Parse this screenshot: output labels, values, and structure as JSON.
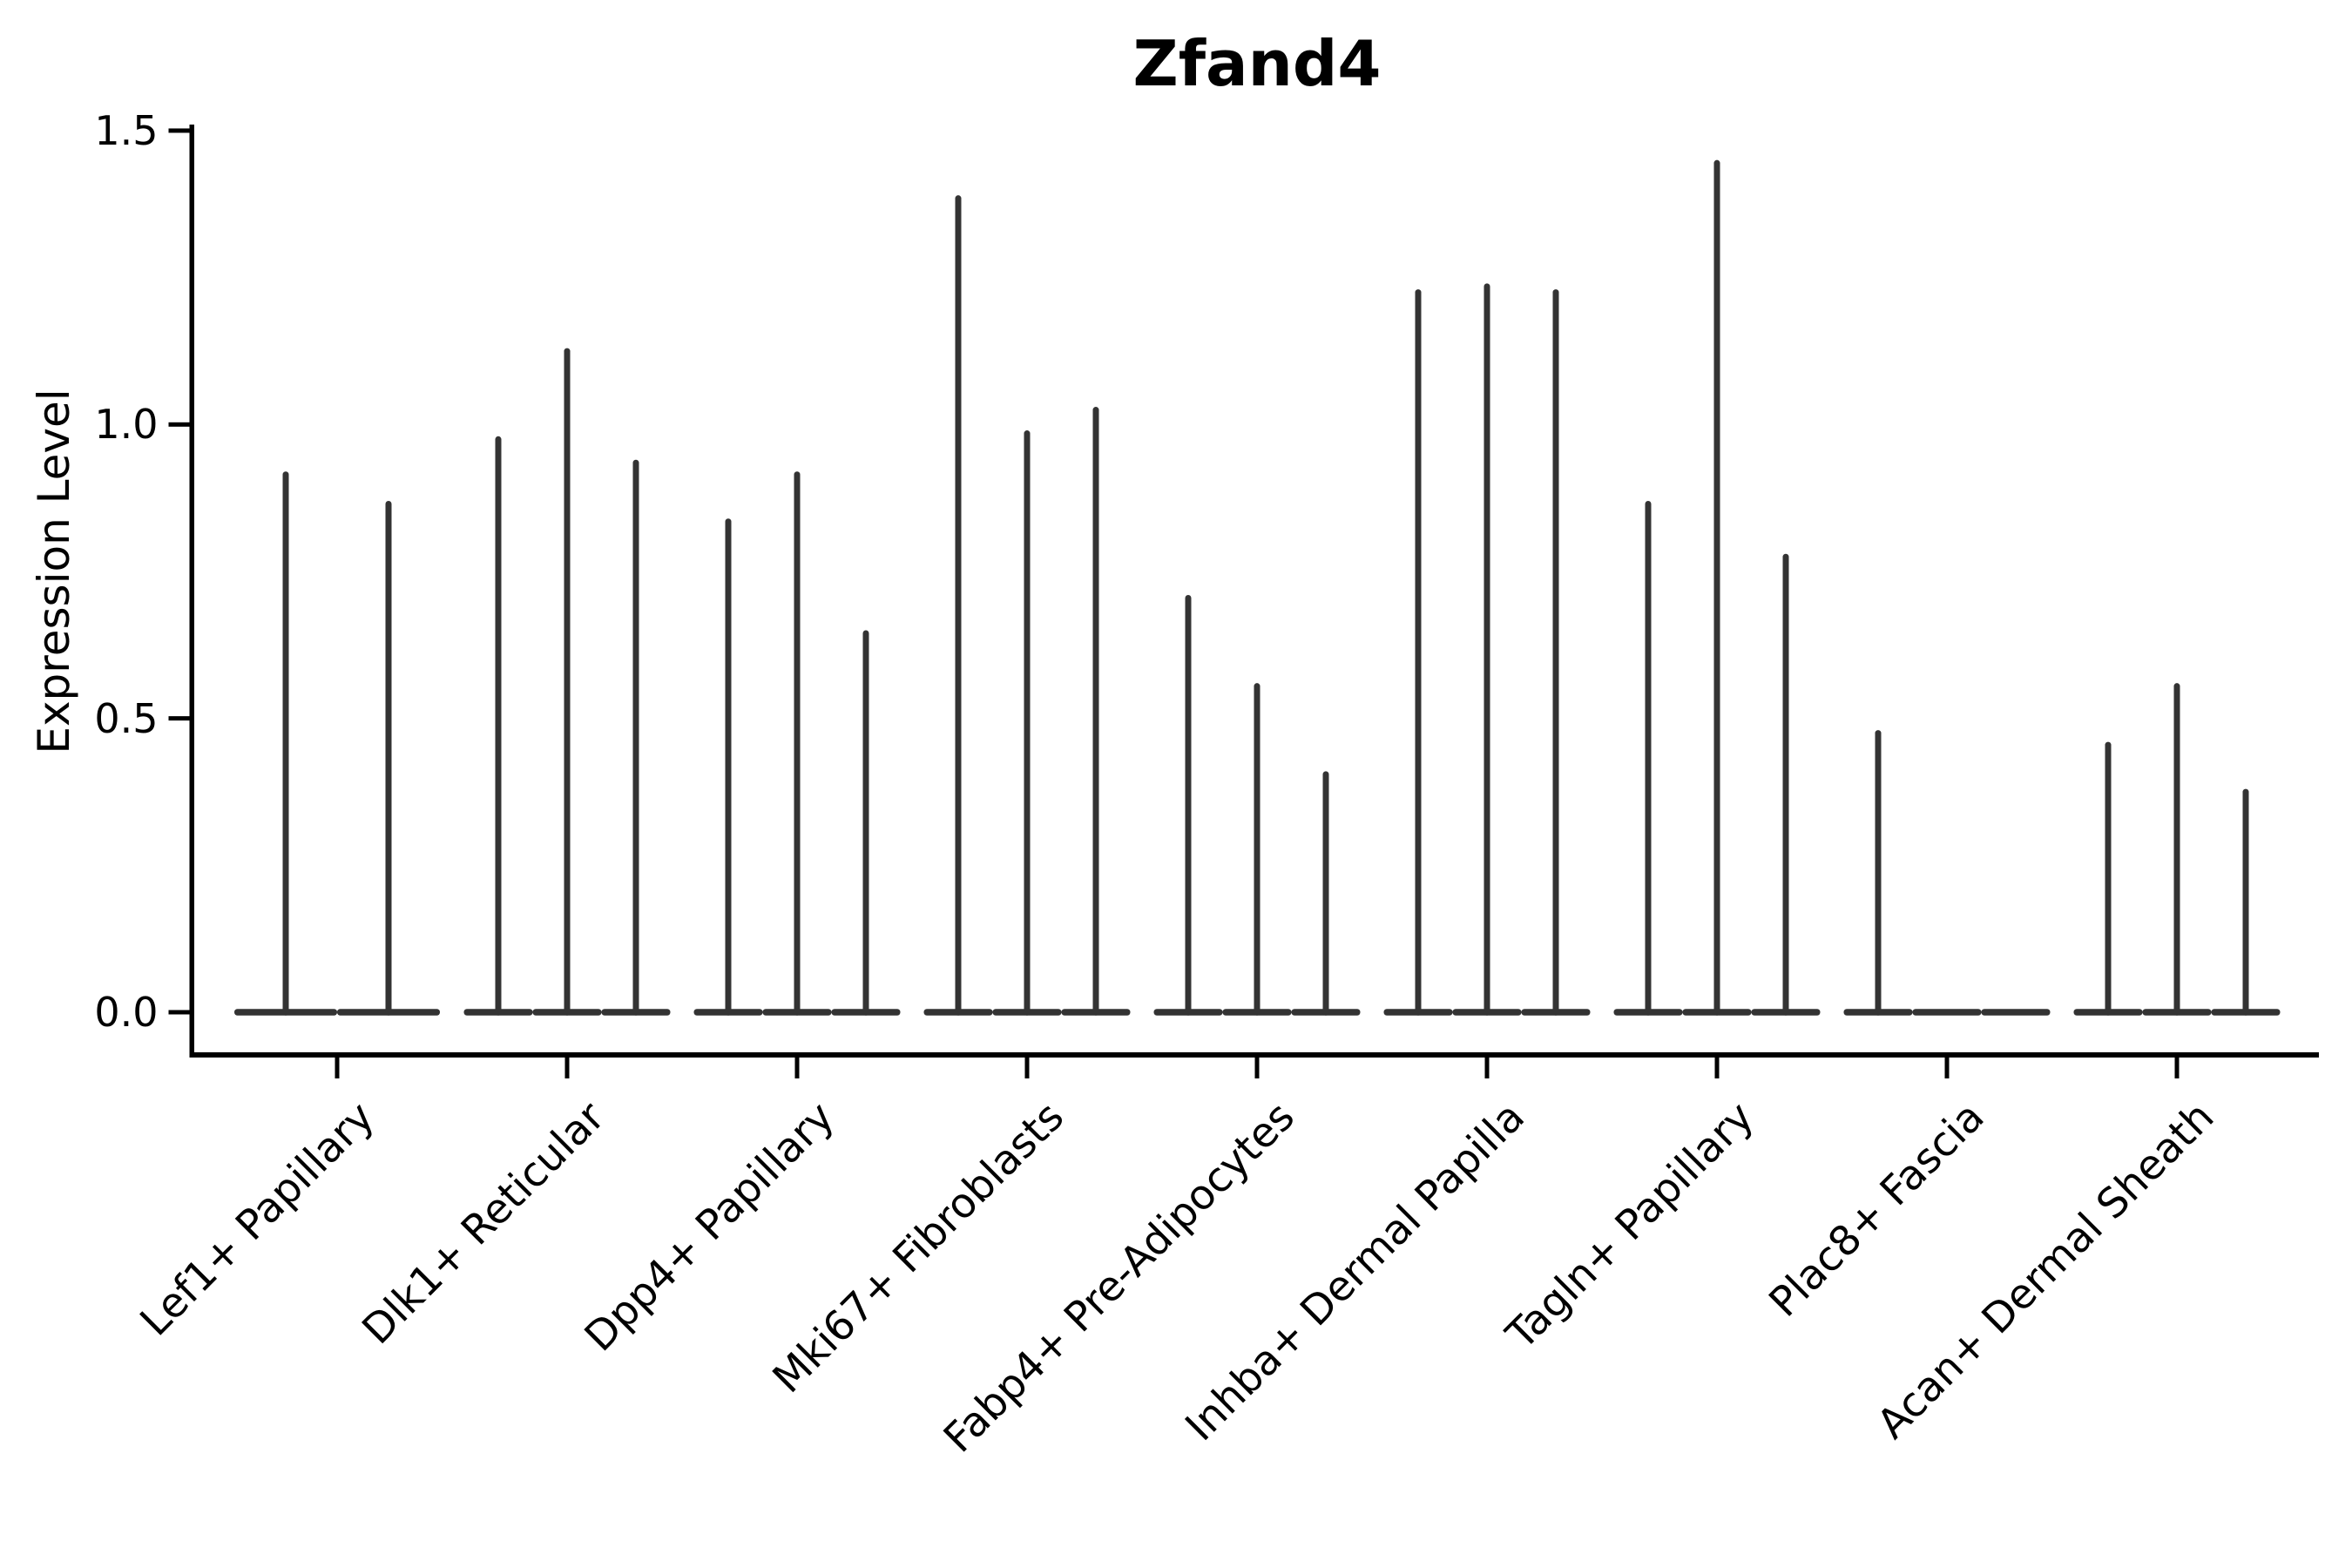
{
  "chart_data": {
    "type": "violin",
    "title": "Zfand4",
    "xlabel": "",
    "ylabel": "Expression Level",
    "yticks": [
      0.0,
      0.5,
      1.0,
      1.5
    ],
    "ylim": [
      0.0,
      1.5
    ],
    "grid": false,
    "legend": "none",
    "background": "#ffffff",
    "categories": [
      "Lef1+ Papillary",
      "Dlk1+ Reticular",
      "Dpp4+ Papillary",
      "Mki67+ Fibroblasts",
      "Fabp4+ Pre-Adipocytes",
      "Inhba+ Dermal Papilla",
      "Tagln+ Papillary",
      "Plac8+ Fascia",
      "Acan+ Dermal Sheath"
    ],
    "violins": [
      {
        "category": "Lef1+ Papillary",
        "maxima": [
          0.92,
          0.87
        ]
      },
      {
        "category": "Dlk1+ Reticular",
        "maxima": [
          0.98,
          1.13,
          0.94
        ]
      },
      {
        "category": "Dpp4+ Papillary",
        "maxima": [
          0.84,
          0.92,
          0.65
        ]
      },
      {
        "category": "Mki67+ Fibroblasts",
        "maxima": [
          1.39,
          0.99,
          1.03
        ]
      },
      {
        "category": "Fabp4+ Pre-Adipocytes",
        "maxima": [
          0.71,
          0.56,
          0.41
        ]
      },
      {
        "category": "Inhba+ Dermal Papilla",
        "maxima": [
          1.23,
          1.24,
          1.23
        ]
      },
      {
        "category": "Tagln+ Papillary",
        "maxima": [
          0.87,
          1.45,
          0.78
        ]
      },
      {
        "category": "Plac8+ Fascia",
        "maxima": [
          0.48,
          0,
          0
        ]
      },
      {
        "category": "Acan+ Dermal Sheath",
        "maxima": [
          0.46,
          0.56,
          0.38
        ]
      }
    ],
    "colors": {
      "violin": "#333333",
      "axis": "#000000",
      "text": "#000000",
      "background": "#ffffff"
    }
  }
}
